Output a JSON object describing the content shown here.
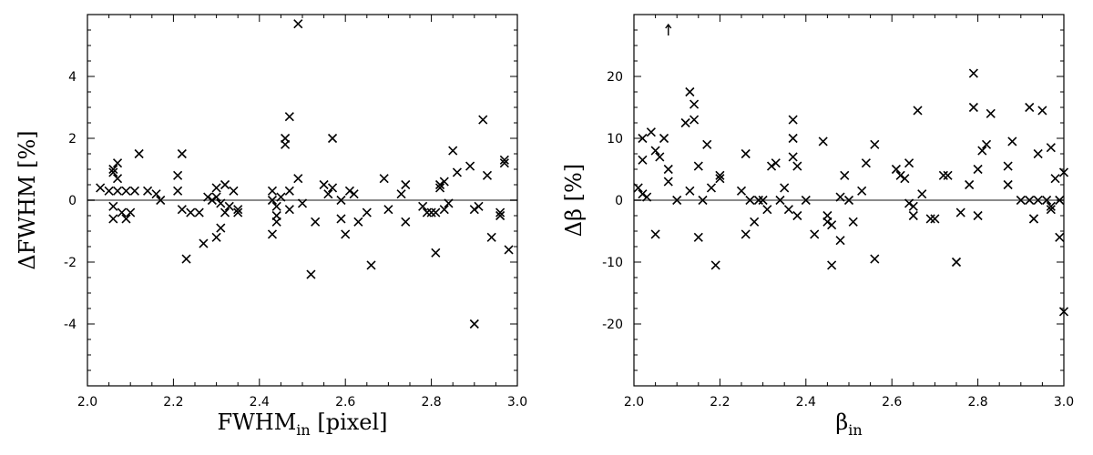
{
  "chart_data": [
    {
      "type": "scatter",
      "xlabel": "FWHM",
      "xlabel_sub": "in",
      "xlabel_unit": " [pixel]",
      "ylabel": "ΔFWHM [%]",
      "xlim": [
        2.0,
        3.0
      ],
      "ylim": [
        -6,
        6
      ],
      "xticks": [
        2.0,
        2.2,
        2.4,
        2.6,
        2.8,
        3.0
      ],
      "xtick_labels": [
        "2.0",
        "2.2",
        "2.4",
        "2.6",
        "2.8",
        "3.0"
      ],
      "yticks": [
        -4,
        -2,
        0,
        2,
        4
      ],
      "ytick_labels": [
        "-4",
        "-2",
        "0",
        "2",
        "4"
      ],
      "reference_line": 0,
      "marker": "x",
      "points": [
        [
          2.03,
          0.4
        ],
        [
          2.05,
          0.3
        ],
        [
          2.06,
          0.9
        ],
        [
          2.06,
          1.0
        ],
        [
          2.07,
          1.2
        ],
        [
          2.06,
          -0.2
        ],
        [
          2.06,
          -0.6
        ],
        [
          2.07,
          0.7
        ],
        [
          2.07,
          0.3
        ],
        [
          2.08,
          -0.4
        ],
        [
          2.09,
          -0.6
        ],
        [
          2.09,
          0.3
        ],
        [
          2.1,
          -0.4
        ],
        [
          2.11,
          0.3
        ],
        [
          2.12,
          1.5
        ],
        [
          2.14,
          0.3
        ],
        [
          2.16,
          0.2
        ],
        [
          2.17,
          0.0
        ],
        [
          2.21,
          0.8
        ],
        [
          2.21,
          0.3
        ],
        [
          2.22,
          1.5
        ],
        [
          2.22,
          -0.3
        ],
        [
          2.23,
          -1.9
        ],
        [
          2.24,
          -0.4
        ],
        [
          2.26,
          -0.4
        ],
        [
          2.27,
          -1.4
        ],
        [
          2.28,
          0.1
        ],
        [
          2.29,
          0.0
        ],
        [
          2.3,
          0.4
        ],
        [
          2.3,
          -1.2
        ],
        [
          2.3,
          0.1
        ],
        [
          2.31,
          -0.1
        ],
        [
          2.31,
          -0.9
        ],
        [
          2.32,
          0.5
        ],
        [
          2.32,
          -0.4
        ],
        [
          2.33,
          -0.2
        ],
        [
          2.34,
          0.3
        ],
        [
          2.35,
          -0.3
        ],
        [
          2.35,
          -0.4
        ],
        [
          2.43,
          0.3
        ],
        [
          2.43,
          -1.1
        ],
        [
          2.43,
          0.0
        ],
        [
          2.44,
          -0.5
        ],
        [
          2.44,
          -0.7
        ],
        [
          2.44,
          -0.2
        ],
        [
          2.45,
          0.1
        ],
        [
          2.46,
          1.8
        ],
        [
          2.46,
          2.0
        ],
        [
          2.47,
          2.7
        ],
        [
          2.47,
          0.3
        ],
        [
          2.47,
          -0.3
        ],
        [
          2.49,
          0.7
        ],
        [
          2.49,
          5.7
        ],
        [
          2.5,
          -0.1
        ],
        [
          2.52,
          -2.4
        ],
        [
          2.53,
          -0.7
        ],
        [
          2.55,
          0.5
        ],
        [
          2.56,
          0.2
        ],
        [
          2.57,
          2.0
        ],
        [
          2.57,
          0.4
        ],
        [
          2.59,
          0.0
        ],
        [
          2.59,
          -0.6
        ],
        [
          2.6,
          -1.1
        ],
        [
          2.61,
          0.3
        ],
        [
          2.62,
          0.2
        ],
        [
          2.63,
          -0.7
        ],
        [
          2.65,
          -0.4
        ],
        [
          2.66,
          -2.1
        ],
        [
          2.69,
          0.7
        ],
        [
          2.7,
          -0.3
        ],
        [
          2.73,
          0.2
        ],
        [
          2.74,
          0.5
        ],
        [
          2.74,
          -0.7
        ],
        [
          2.78,
          -0.2
        ],
        [
          2.79,
          -0.4
        ],
        [
          2.8,
          -0.4
        ],
        [
          2.81,
          -0.4
        ],
        [
          2.82,
          0.5
        ],
        [
          2.82,
          0.4
        ],
        [
          2.83,
          0.6
        ],
        [
          2.83,
          -0.3
        ],
        [
          2.84,
          -0.1
        ],
        [
          2.81,
          -1.7
        ],
        [
          2.85,
          1.6
        ],
        [
          2.86,
          0.9
        ],
        [
          2.89,
          1.1
        ],
        [
          2.9,
          -0.3
        ],
        [
          2.9,
          -4.0
        ],
        [
          2.91,
          -0.2
        ],
        [
          2.92,
          2.6
        ],
        [
          2.93,
          0.8
        ],
        [
          2.94,
          -1.2
        ],
        [
          2.96,
          -0.4
        ],
        [
          2.96,
          -0.5
        ],
        [
          2.97,
          1.3
        ],
        [
          2.97,
          1.2
        ],
        [
          2.98,
          -1.6
        ]
      ]
    },
    {
      "type": "scatter",
      "xlabel": "β",
      "xlabel_sub": "in",
      "xlabel_unit": "",
      "ylabel": "Δβ [%]",
      "xlim": [
        2.0,
        3.0
      ],
      "ylim": [
        -30,
        30
      ],
      "xticks": [
        2.0,
        2.2,
        2.4,
        2.6,
        2.8,
        3.0
      ],
      "xtick_labels": [
        "2.0",
        "2.2",
        "2.4",
        "2.6",
        "2.8",
        "3.0"
      ],
      "yticks": [
        -20,
        -10,
        0,
        10,
        20
      ],
      "ytick_labels": [
        "-20",
        "-10",
        "0",
        "10",
        "20"
      ],
      "reference_line": 0,
      "marker": "x",
      "offscale_arrow": {
        "x": 2.08,
        "y": 27.5
      },
      "points": [
        [
          2.01,
          2
        ],
        [
          2.02,
          10
        ],
        [
          2.02,
          6.5
        ],
        [
          2.02,
          1
        ],
        [
          2.03,
          0.5
        ],
        [
          2.04,
          11
        ],
        [
          2.05,
          8
        ],
        [
          2.05,
          -5.5
        ],
        [
          2.06,
          7
        ],
        [
          2.07,
          10
        ],
        [
          2.08,
          5
        ],
        [
          2.08,
          3
        ],
        [
          2.1,
          0
        ],
        [
          2.12,
          12.5
        ],
        [
          2.13,
          1.5
        ],
        [
          2.13,
          17.5
        ],
        [
          2.14,
          15.5
        ],
        [
          2.14,
          13
        ],
        [
          2.15,
          5.5
        ],
        [
          2.15,
          -6
        ],
        [
          2.16,
          0
        ],
        [
          2.17,
          9
        ],
        [
          2.18,
          2
        ],
        [
          2.2,
          3.5
        ],
        [
          2.2,
          4
        ],
        [
          2.19,
          -10.5
        ],
        [
          2.25,
          1.5
        ],
        [
          2.26,
          7.5
        ],
        [
          2.26,
          -5.5
        ],
        [
          2.27,
          0
        ],
        [
          2.28,
          -3.5
        ],
        [
          2.29,
          0
        ],
        [
          2.3,
          0
        ],
        [
          2.31,
          -1.5
        ],
        [
          2.32,
          5.5
        ],
        [
          2.33,
          6
        ],
        [
          2.34,
          0
        ],
        [
          2.35,
          2
        ],
        [
          2.36,
          -1.5
        ],
        [
          2.37,
          13
        ],
        [
          2.37,
          10
        ],
        [
          2.37,
          7
        ],
        [
          2.38,
          5.5
        ],
        [
          2.38,
          -2.5
        ],
        [
          2.4,
          0
        ],
        [
          2.42,
          -5.5
        ],
        [
          2.44,
          9.5
        ],
        [
          2.45,
          -2.5
        ],
        [
          2.45,
          -3.5
        ],
        [
          2.46,
          -4
        ],
        [
          2.46,
          -10.5
        ],
        [
          2.48,
          -6.5
        ],
        [
          2.48,
          0.5
        ],
        [
          2.49,
          4
        ],
        [
          2.5,
          0
        ],
        [
          2.51,
          -3.5
        ],
        [
          2.53,
          1.5
        ],
        [
          2.54,
          6
        ],
        [
          2.56,
          9
        ],
        [
          2.56,
          -9.5
        ],
        [
          2.61,
          5
        ],
        [
          2.62,
          4
        ],
        [
          2.63,
          3.5
        ],
        [
          2.64,
          -0.5
        ],
        [
          2.64,
          6
        ],
        [
          2.65,
          -1
        ],
        [
          2.65,
          -2.5
        ],
        [
          2.66,
          14.5
        ],
        [
          2.67,
          1
        ],
        [
          2.69,
          -3
        ],
        [
          2.7,
          -3
        ],
        [
          2.72,
          4
        ],
        [
          2.73,
          4
        ],
        [
          2.75,
          -10
        ],
        [
          2.76,
          -2
        ],
        [
          2.78,
          2.5
        ],
        [
          2.79,
          20.5
        ],
        [
          2.79,
          15
        ],
        [
          2.8,
          5
        ],
        [
          2.8,
          -2.5
        ],
        [
          2.81,
          8
        ],
        [
          2.82,
          9
        ],
        [
          2.83,
          14
        ],
        [
          2.87,
          5.5
        ],
        [
          2.87,
          2.5
        ],
        [
          2.88,
          9.5
        ],
        [
          2.9,
          0
        ],
        [
          2.92,
          15
        ],
        [
          2.92,
          0
        ],
        [
          2.93,
          -3
        ],
        [
          2.93,
          -3
        ],
        [
          2.94,
          7.5
        ],
        [
          2.94,
          0
        ],
        [
          2.95,
          14.5
        ],
        [
          2.96,
          0
        ],
        [
          2.97,
          8.5
        ],
        [
          2.97,
          -1
        ],
        [
          2.97,
          -1.5
        ],
        [
          2.98,
          3.5
        ],
        [
          2.99,
          -6
        ],
        [
          2.99,
          0
        ],
        [
          3.0,
          4.5
        ],
        [
          3.0,
          -18
        ]
      ]
    }
  ]
}
